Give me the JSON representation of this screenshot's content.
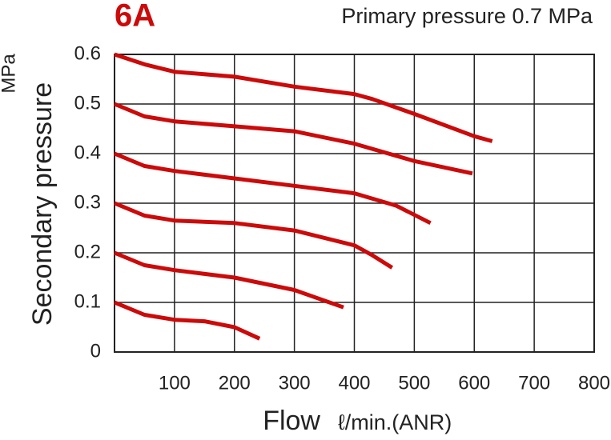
{
  "chart_data": {
    "type": "line",
    "title": "6A",
    "subtitle": "Primary pressure 0.7 MPa",
    "y_label": "Secondary pressure",
    "y_unit": "MPa",
    "x_label": "Flow",
    "x_unit": "ℓ/min.(ANR)",
    "xlim": [
      0,
      800
    ],
    "xticks": [
      100,
      200,
      300,
      400,
      500,
      600,
      700,
      800
    ],
    "ylim": [
      0,
      0.6
    ],
    "yticks": [
      0,
      0.1,
      0.2,
      0.3,
      0.4,
      0.5,
      0.6
    ],
    "grid": true,
    "series": [
      {
        "color": "#cc0a0a",
        "x": [
          0,
          50,
          100,
          200,
          300,
          400,
          430,
          500,
          600,
          630
        ],
        "values": [
          0.6,
          0.58,
          0.565,
          0.555,
          0.535,
          0.52,
          0.51,
          0.48,
          0.435,
          0.425
        ]
      },
      {
        "color": "#cc0a0a",
        "x": [
          0,
          50,
          100,
          200,
          300,
          400,
          500,
          597
        ],
        "values": [
          0.5,
          0.475,
          0.465,
          0.455,
          0.445,
          0.42,
          0.385,
          0.36
        ]
      },
      {
        "color": "#cc0a0a",
        "x": [
          0,
          50,
          100,
          200,
          300,
          400,
          470,
          527
        ],
        "values": [
          0.4,
          0.375,
          0.365,
          0.35,
          0.335,
          0.32,
          0.295,
          0.26
        ]
      },
      {
        "color": "#cc0a0a",
        "x": [
          0,
          50,
          100,
          200,
          300,
          400,
          430,
          463
        ],
        "values": [
          0.3,
          0.275,
          0.265,
          0.26,
          0.245,
          0.215,
          0.195,
          0.17
        ]
      },
      {
        "color": "#cc0a0a",
        "x": [
          0,
          50,
          100,
          200,
          300,
          382
        ],
        "values": [
          0.2,
          0.175,
          0.165,
          0.15,
          0.125,
          0.09
        ]
      },
      {
        "color": "#cc0a0a",
        "x": [
          0,
          50,
          100,
          150,
          200,
          242
        ],
        "values": [
          0.1,
          0.075,
          0.065,
          0.062,
          0.05,
          0.027
        ]
      }
    ]
  }
}
